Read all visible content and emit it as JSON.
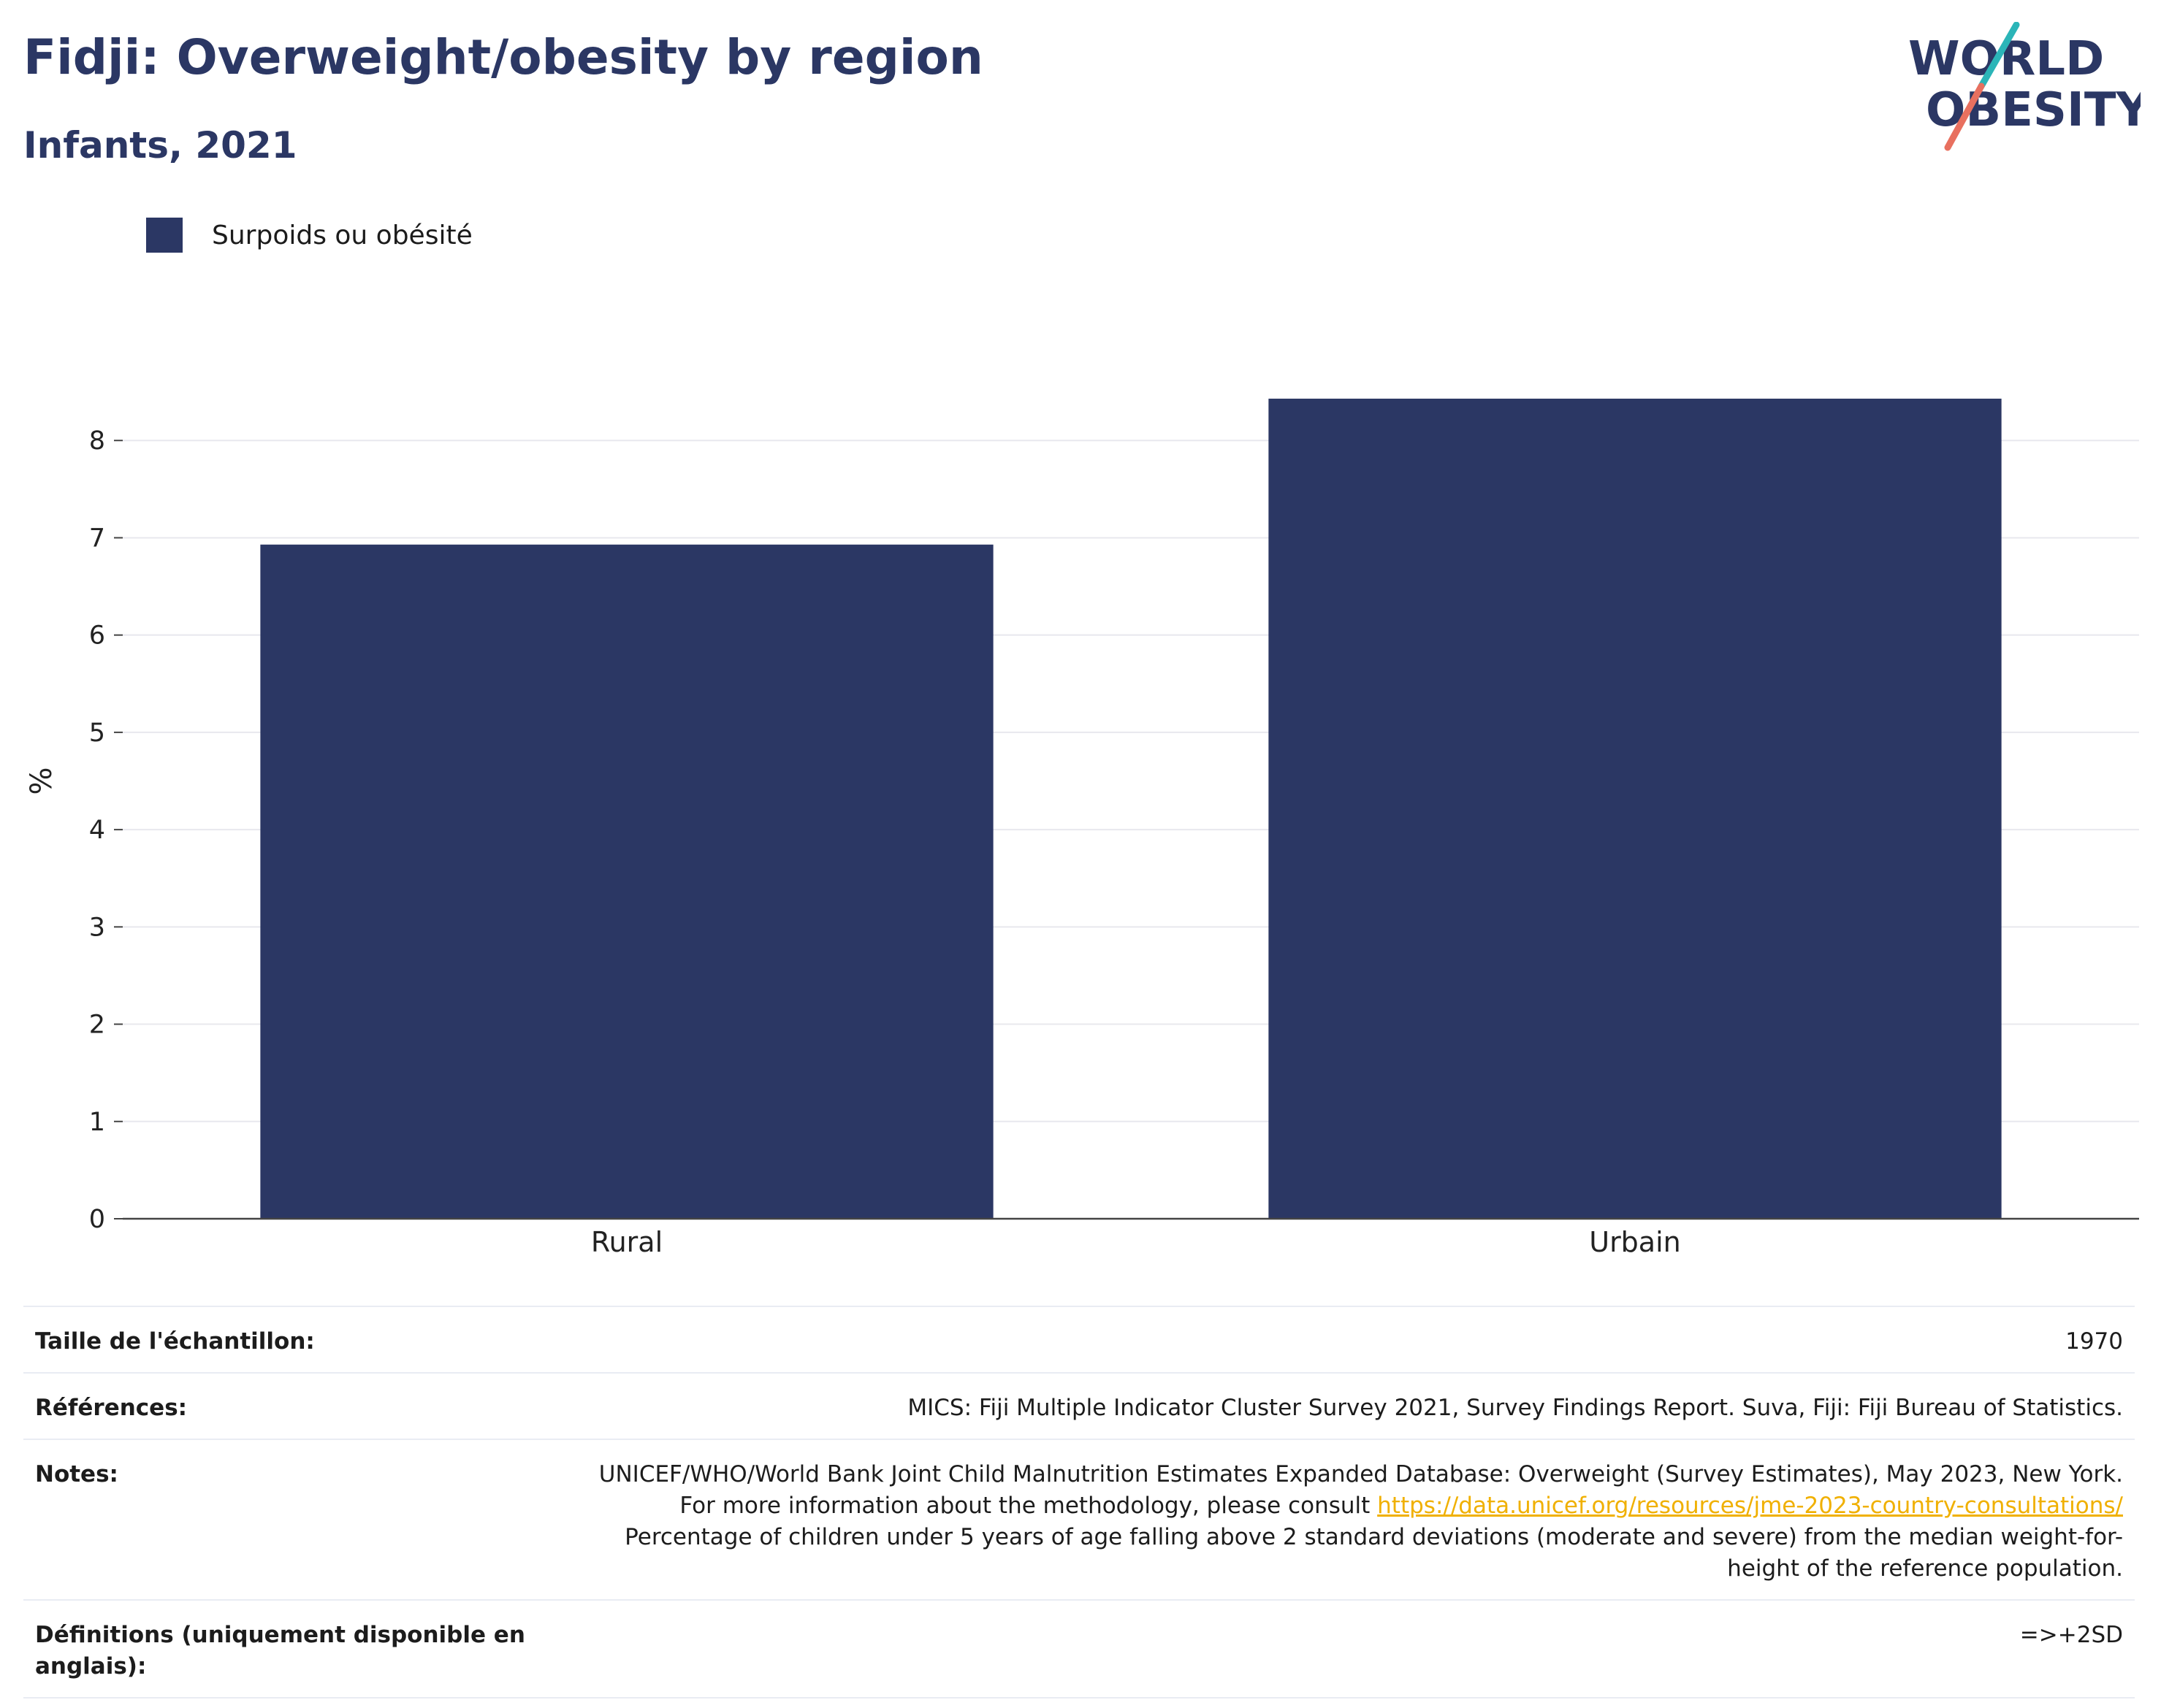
{
  "header": {
    "title": "Fidji: Overweight/obesity by region",
    "subtitle": "Infants, 2021"
  },
  "logo": {
    "line1": "WORLD",
    "line2": "OBESITY",
    "colors": {
      "text": "#2b3764",
      "accent1": "#2bb5b8",
      "accent2": "#e8705f"
    }
  },
  "chart_data": {
    "type": "bar",
    "categories": [
      "Rural",
      "Urbain"
    ],
    "series": [
      {
        "name": "Surpoids ou obésité",
        "values": [
          6.93,
          8.43
        ],
        "color": "#2b3764"
      }
    ],
    "ylabel": "%",
    "xlabel": "",
    "ylim": [
      0,
      9
    ],
    "yticks": [
      0,
      1,
      2,
      3,
      4,
      5,
      6,
      7,
      8
    ],
    "grid": true,
    "legend_position": "top-left"
  },
  "info": {
    "sample": {
      "label": "Taille de l'échantillon:",
      "value": "1970"
    },
    "refs": {
      "label": "Références:",
      "value": "MICS: Fiji Multiple Indicator Cluster Survey 2021, Survey Findings Report. Suva, Fiji: Fiji Bureau of Statistics."
    },
    "notes": {
      "label": "Notes:",
      "text1": "UNICEF/WHO/World Bank Joint Child Malnutrition Estimates Expanded Database: Overweight (Survey Estimates), May 2023, New York. For more information about the methodology, please consult ",
      "link": "https://data.unicef.org/resources/jme-2023-country-consultations/",
      "text2": "Percentage of children under 5 years of age falling above 2 standard deviations (moderate and severe) from the median weight-for-height of the reference population."
    },
    "defs": {
      "label": "Définitions (uniquement disponible en anglais):",
      "value": "=>+2SD"
    }
  }
}
